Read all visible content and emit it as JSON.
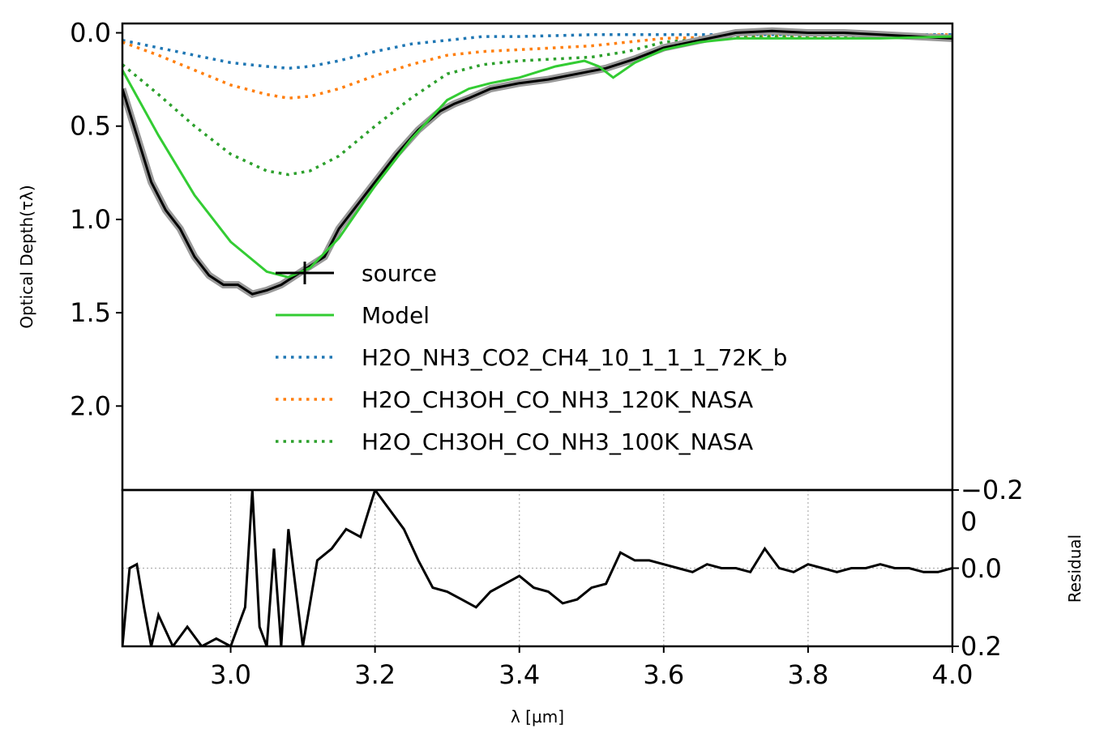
{
  "chart_data": [
    {
      "panel": "main",
      "type": "line",
      "ylabel": "Optical Depth(τλ)",
      "xlim": [
        2.85,
        4.0
      ],
      "ylim": [
        2.45,
        -0.05
      ],
      "y_inverted": true,
      "grid": false,
      "legend_placement": "lower-right",
      "yticks": [
        0.0,
        0.5,
        1.0,
        1.5,
        2.0
      ],
      "ytick_labels": [
        "0.0",
        "0.5",
        "1.0",
        "1.5",
        "2.0"
      ],
      "series": [
        {
          "name": "source",
          "style": "solid",
          "color": "#000000",
          "x": [
            2.85,
            2.87,
            2.89,
            2.91,
            2.93,
            2.95,
            2.97,
            2.99,
            3.01,
            3.03,
            3.05,
            3.07,
            3.09,
            3.11,
            3.13,
            3.15,
            3.17,
            3.2,
            3.23,
            3.26,
            3.29,
            3.31,
            3.33,
            3.36,
            3.4,
            3.44,
            3.48,
            3.52,
            3.56,
            3.6,
            3.65,
            3.7,
            3.75,
            3.8,
            3.85,
            3.9,
            3.95,
            4.0
          ],
          "y": [
            0.3,
            0.55,
            0.8,
            0.95,
            1.05,
            1.2,
            1.3,
            1.35,
            1.35,
            1.4,
            1.38,
            1.35,
            1.3,
            1.25,
            1.2,
            1.05,
            0.95,
            0.8,
            0.65,
            0.52,
            0.42,
            0.38,
            0.35,
            0.3,
            0.27,
            0.25,
            0.22,
            0.19,
            0.14,
            0.08,
            0.04,
            0.0,
            -0.01,
            0.0,
            0.0,
            0.01,
            0.02,
            0.03
          ]
        },
        {
          "name": "Model",
          "style": "solid",
          "color": "#33cc33",
          "x": [
            2.85,
            2.9,
            2.95,
            3.0,
            3.05,
            3.08,
            3.11,
            3.15,
            3.2,
            3.25,
            3.3,
            3.33,
            3.36,
            3.4,
            3.45,
            3.49,
            3.51,
            3.53,
            3.56,
            3.6,
            3.65,
            3.7,
            3.8,
            3.9,
            4.0
          ],
          "y": [
            0.2,
            0.55,
            0.87,
            1.12,
            1.28,
            1.31,
            1.26,
            1.1,
            0.82,
            0.57,
            0.36,
            0.3,
            0.27,
            0.24,
            0.18,
            0.15,
            0.18,
            0.24,
            0.16,
            0.09,
            0.05,
            0.03,
            0.03,
            0.03,
            0.02
          ]
        },
        {
          "name": "H2O_NH3_CO2_CH4_10_1_1_1_72K_b",
          "style": "dotted",
          "color": "#1f77b4",
          "x": [
            2.85,
            2.9,
            2.95,
            3.0,
            3.05,
            3.08,
            3.11,
            3.15,
            3.2,
            3.25,
            3.3,
            3.35,
            3.4,
            3.5,
            3.6,
            4.0
          ],
          "y": [
            0.04,
            0.08,
            0.12,
            0.16,
            0.18,
            0.19,
            0.18,
            0.15,
            0.1,
            0.06,
            0.04,
            0.02,
            0.02,
            0.01,
            0.01,
            0.01
          ]
        },
        {
          "name": "H2O_CH3OH_CO_NH3_120K_NASA",
          "style": "dotted",
          "color": "#ff7f0e",
          "x": [
            2.85,
            2.9,
            2.95,
            3.0,
            3.05,
            3.08,
            3.11,
            3.15,
            3.2,
            3.25,
            3.3,
            3.35,
            3.4,
            3.45,
            3.5,
            3.55,
            3.6,
            3.7,
            4.0
          ],
          "y": [
            0.05,
            0.12,
            0.2,
            0.28,
            0.33,
            0.35,
            0.34,
            0.3,
            0.23,
            0.17,
            0.12,
            0.1,
            0.09,
            0.08,
            0.07,
            0.05,
            0.03,
            0.02,
            0.01
          ]
        },
        {
          "name": "H2O_CH3OH_CO_NH3_100K_NASA",
          "style": "dotted",
          "color": "#2ca02c",
          "x": [
            2.85,
            2.9,
            2.95,
            3.0,
            3.05,
            3.08,
            3.11,
            3.15,
            3.2,
            3.25,
            3.3,
            3.35,
            3.4,
            3.45,
            3.5,
            3.55,
            3.6,
            3.7,
            4.0
          ],
          "y": [
            0.17,
            0.33,
            0.5,
            0.65,
            0.74,
            0.76,
            0.74,
            0.66,
            0.5,
            0.35,
            0.22,
            0.17,
            0.15,
            0.14,
            0.13,
            0.1,
            0.05,
            0.02,
            0.02
          ]
        }
      ]
    },
    {
      "panel": "residual",
      "type": "line",
      "ylabel": "Residual",
      "xlabel": "λ [µm]",
      "xlim": [
        2.85,
        4.0
      ],
      "ylim": [
        0.2,
        -0.2
      ],
      "y_inverted": true,
      "grid": true,
      "y_axis_side": "right",
      "xticks": [
        3.0,
        3.2,
        3.4,
        3.6,
        3.8,
        4.0
      ],
      "xtick_labels": [
        "3.0",
        "3.2",
        "3.4",
        "3.6",
        "3.8",
        "4.0"
      ],
      "ytick_labels": [
        "−0.2",
        "0",
        "0.0",
        "0.2"
      ],
      "series": [
        {
          "name": "residual",
          "style": "solid",
          "color": "#000000",
          "x": [
            2.85,
            2.86,
            2.87,
            2.88,
            2.89,
            2.9,
            2.92,
            2.94,
            2.96,
            2.98,
            3.0,
            3.02,
            3.03,
            3.04,
            3.05,
            3.06,
            3.07,
            3.08,
            3.1,
            3.12,
            3.14,
            3.16,
            3.18,
            3.2,
            3.22,
            3.24,
            3.26,
            3.28,
            3.3,
            3.32,
            3.34,
            3.36,
            3.38,
            3.4,
            3.42,
            3.44,
            3.46,
            3.48,
            3.5,
            3.52,
            3.54,
            3.56,
            3.58,
            3.6,
            3.62,
            3.64,
            3.66,
            3.68,
            3.7,
            3.72,
            3.74,
            3.76,
            3.78,
            3.8,
            3.82,
            3.84,
            3.86,
            3.88,
            3.9,
            3.92,
            3.94,
            3.96,
            3.98,
            4.0
          ],
          "y": [
            0.2,
            0.0,
            -0.01,
            0.1,
            0.2,
            0.12,
            0.2,
            0.15,
            0.2,
            0.18,
            0.2,
            0.1,
            -0.2,
            0.15,
            0.2,
            -0.05,
            0.2,
            -0.1,
            0.2,
            -0.02,
            -0.05,
            -0.1,
            -0.08,
            -0.2,
            -0.15,
            -0.1,
            -0.02,
            0.05,
            0.06,
            0.08,
            0.1,
            0.06,
            0.04,
            0.02,
            0.05,
            0.06,
            0.09,
            0.08,
            0.05,
            0.04,
            -0.04,
            -0.02,
            -0.02,
            -0.01,
            0.0,
            0.01,
            -0.01,
            0.0,
            0.0,
            0.01,
            -0.05,
            0.0,
            0.01,
            -0.01,
            0.0,
            0.01,
            0.0,
            0.0,
            -0.01,
            0.0,
            0.0,
            0.01,
            0.01,
            0.0
          ]
        }
      ]
    }
  ]
}
